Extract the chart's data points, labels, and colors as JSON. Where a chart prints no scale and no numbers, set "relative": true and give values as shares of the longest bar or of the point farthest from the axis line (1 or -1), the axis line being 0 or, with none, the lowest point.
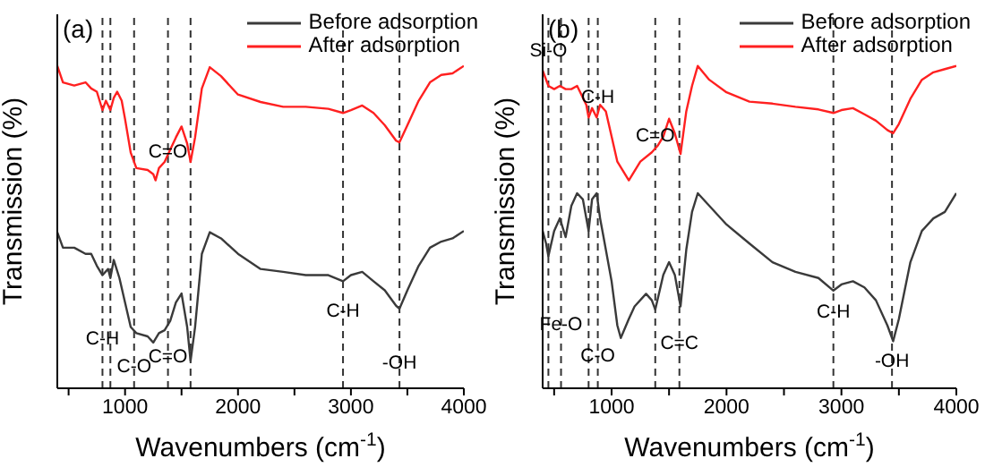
{
  "chart_data": [
    {
      "type": "line",
      "title": "(a)",
      "xlabel": "Wavenumbers (cm$^{-1}$)",
      "ylabel": "Transmission (%)",
      "relative": true,
      "tick_labels": "x",
      "legend": "top right",
      "grid": false,
      "marker": "none",
      "line_style": "solid",
      "xlim": [
        400,
        4000
      ],
      "xticks": [
        {
          "value": 500,
          "label": null
        },
        1000,
        {
          "value": 1500,
          "label": null
        },
        2000,
        {
          "value": 2500,
          "label": null
        },
        3000,
        {
          "value": 3500,
          "label": null
        },
        4000
      ],
      "series": [
        {
          "name": "Before adsorption",
          "color": "#3a3a3a",
          "x": [
            400,
            450,
            550,
            650,
            700,
            750,
            800,
            850,
            870,
            900,
            950,
            1000,
            1050,
            1100,
            1200,
            1250,
            1300,
            1350,
            1400,
            1450,
            1500,
            1550,
            1580,
            1620,
            1680,
            1750,
            1850,
            2000,
            2200,
            2400,
            2600,
            2800,
            2930,
            3000,
            3100,
            3200,
            3300,
            3400,
            3430,
            3500,
            3600,
            3700,
            3800,
            3900,
            4000
          ],
          "values": [
            0.484,
            0.436,
            0.436,
            0.417,
            0.417,
            0.38,
            0.351,
            0.37,
            0.342,
            0.398,
            0.342,
            0.266,
            0.19,
            0.171,
            0.161,
            0.142,
            0.171,
            0.18,
            0.209,
            0.266,
            0.294,
            0.19,
            0.085,
            0.19,
            0.417,
            0.484,
            0.465,
            0.417,
            0.37,
            0.361,
            0.351,
            0.351,
            0.332,
            0.351,
            0.361,
            0.332,
            0.304,
            0.256,
            0.247,
            0.304,
            0.38,
            0.436,
            0.455,
            0.465,
            0.488
          ]
        },
        {
          "name": "After adsorption",
          "color": "#ff2020",
          "x": [
            400,
            450,
            550,
            650,
            700,
            750,
            800,
            830,
            870,
            900,
            930,
            970,
            1000,
            1050,
            1100,
            1200,
            1250,
            1270,
            1300,
            1350,
            1400,
            1450,
            1500,
            1550,
            1580,
            1620,
            1680,
            1750,
            1850,
            2000,
            2200,
            2400,
            2600,
            2800,
            2930,
            3000,
            3100,
            3200,
            3300,
            3400,
            3430,
            3500,
            3600,
            3700,
            3800,
            3900,
            4000
          ],
          "values": [
            1.0,
            0.949,
            0.939,
            0.949,
            0.93,
            0.92,
            0.863,
            0.892,
            0.863,
            0.901,
            0.92,
            0.892,
            0.835,
            0.731,
            0.683,
            0.677,
            0.664,
            0.645,
            0.683,
            0.702,
            0.74,
            0.778,
            0.812,
            0.759,
            0.702,
            0.778,
            0.93,
            0.996,
            0.968,
            0.911,
            0.888,
            0.873,
            0.873,
            0.867,
            0.854,
            0.863,
            0.877,
            0.854,
            0.816,
            0.768,
            0.763,
            0.816,
            0.892,
            0.949,
            0.972,
            0.977,
            1.0
          ]
        }
      ],
      "ref_lines": [
        {
          "axis": "x",
          "value": 800,
          "color": "#333333",
          "line_style": "dashed"
        },
        {
          "axis": "x",
          "value": 870,
          "color": "#333333",
          "line_style": "dashed"
        },
        {
          "axis": "x",
          "value": 1080,
          "color": "#333333",
          "line_style": "dashed"
        },
        {
          "axis": "x",
          "value": 1380,
          "color": "#333333",
          "line_style": "dashed"
        },
        {
          "axis": "x",
          "value": 1580,
          "color": "#333333",
          "line_style": "dashed"
        },
        {
          "axis": "x",
          "value": 2930,
          "color": "#333333",
          "line_style": "dashed"
        },
        {
          "axis": "x",
          "value": 3430,
          "color": "#333333",
          "line_style": "dashed"
        }
      ],
      "annotations": [
        {
          "text": "C-H",
          "x": 800,
          "y": 0.152
        },
        {
          "text": "C-O",
          "x": 1080,
          "y": 0.066
        },
        {
          "text": "C=O",
          "x": 1380,
          "y": 0.095
        },
        {
          "text": "C=O",
          "x": 1380,
          "y": 0.731
        },
        {
          "text": "C-H",
          "x": 2930,
          "y": 0.237
        },
        {
          "text": "-OH",
          "x": 3430,
          "y": 0.076
        }
      ]
    },
    {
      "type": "line",
      "title": "(b)",
      "xlabel": "Wavenumbers (cm$^{-1}$)",
      "ylabel": "Transmission (%)",
      "relative": true,
      "tick_labels": "x",
      "legend": "top right",
      "grid": false,
      "marker": "none",
      "line_style": "solid",
      "xlim": [
        400,
        4000
      ],
      "xticks": [
        {
          "value": 500,
          "label": null
        },
        1000,
        {
          "value": 1500,
          "label": null
        },
        2000,
        {
          "value": 2500,
          "label": null
        },
        3000,
        {
          "value": 3500,
          "label": null
        },
        4000
      ],
      "series": [
        {
          "name": "Before adsorption",
          "color": "#3a3a3a",
          "x": [
            400,
            430,
            450,
            500,
            550,
            600,
            650,
            700,
            750,
            800,
            830,
            870,
            900,
            930,
            1000,
            1050,
            1080,
            1150,
            1200,
            1300,
            1350,
            1380,
            1450,
            1500,
            1550,
            1600,
            1650,
            1700,
            1750,
            1850,
            2000,
            2200,
            2400,
            2600,
            2800,
            2930,
            3000,
            3100,
            3200,
            3300,
            3400,
            3450,
            3500,
            3600,
            3700,
            3800,
            3900,
            4000
          ],
          "values": [
            0.488,
            0.449,
            0.41,
            0.488,
            0.527,
            0.469,
            0.566,
            0.605,
            0.586,
            0.488,
            0.586,
            0.605,
            0.527,
            0.469,
            0.332,
            0.195,
            0.156,
            0.215,
            0.254,
            0.293,
            0.273,
            0.244,
            0.352,
            0.391,
            0.352,
            0.254,
            0.43,
            0.547,
            0.605,
            0.566,
            0.508,
            0.449,
            0.391,
            0.361,
            0.342,
            0.303,
            0.322,
            0.332,
            0.313,
            0.273,
            0.195,
            0.146,
            0.215,
            0.391,
            0.488,
            0.527,
            0.547,
            0.605
          ]
        },
        {
          "name": "After adsorption",
          "color": "#ff2020",
          "x": [
            400,
            450,
            500,
            550,
            600,
            650,
            700,
            780,
            800,
            830,
            870,
            900,
            950,
            1000,
            1050,
            1150,
            1250,
            1350,
            1400,
            1450,
            1500,
            1550,
            1600,
            1650,
            1700,
            1750,
            1850,
            2000,
            2200,
            2400,
            2600,
            2800,
            2930,
            3000,
            3100,
            3200,
            3300,
            3400,
            3450,
            3500,
            3600,
            3700,
            3800,
            3900,
            4000
          ],
          "values": [
            0.986,
            0.938,
            0.928,
            0.938,
            0.928,
            0.928,
            0.938,
            0.879,
            0.84,
            0.869,
            0.84,
            0.879,
            0.859,
            0.781,
            0.703,
            0.645,
            0.703,
            0.732,
            0.752,
            0.781,
            0.836,
            0.791,
            0.727,
            0.859,
            0.938,
            1.0,
            0.957,
            0.918,
            0.889,
            0.883,
            0.873,
            0.865,
            0.854,
            0.863,
            0.869,
            0.85,
            0.83,
            0.801,
            0.791,
            0.82,
            0.898,
            0.957,
            0.98,
            0.99,
            1.0
          ]
        }
      ],
      "ref_lines": [
        {
          "axis": "x",
          "value": 450,
          "color": "#333333",
          "line_style": "dashed"
        },
        {
          "axis": "x",
          "value": 560,
          "color": "#333333",
          "line_style": "dashed"
        },
        {
          "axis": "x",
          "value": 800,
          "color": "#333333",
          "line_style": "dashed"
        },
        {
          "axis": "x",
          "value": 880,
          "color": "#333333",
          "line_style": "dashed"
        },
        {
          "axis": "x",
          "value": 1380,
          "color": "#333333",
          "line_style": "dashed"
        },
        {
          "axis": "x",
          "value": 1590,
          "color": "#333333",
          "line_style": "dashed"
        },
        {
          "axis": "x",
          "value": 2930,
          "color": "#333333",
          "line_style": "dashed"
        },
        {
          "axis": "x",
          "value": 3440,
          "color": "#333333",
          "line_style": "dashed"
        }
      ],
      "annotations": [
        {
          "text": "Si-O",
          "x": 450,
          "y": 1.045
        },
        {
          "text": "C-H",
          "x": 880,
          "y": 0.902
        },
        {
          "text": "C=O",
          "x": 1380,
          "y": 0.781
        },
        {
          "text": "Fe-O",
          "x": 560,
          "y": 0.195
        },
        {
          "text": "C-O",
          "x": 880,
          "y": 0.098
        },
        {
          "text": "C=C",
          "x": 1590,
          "y": 0.137
        },
        {
          "text": "C-H",
          "x": 2930,
          "y": 0.234
        },
        {
          "text": "-OH",
          "x": 3440,
          "y": 0.082
        }
      ]
    }
  ]
}
